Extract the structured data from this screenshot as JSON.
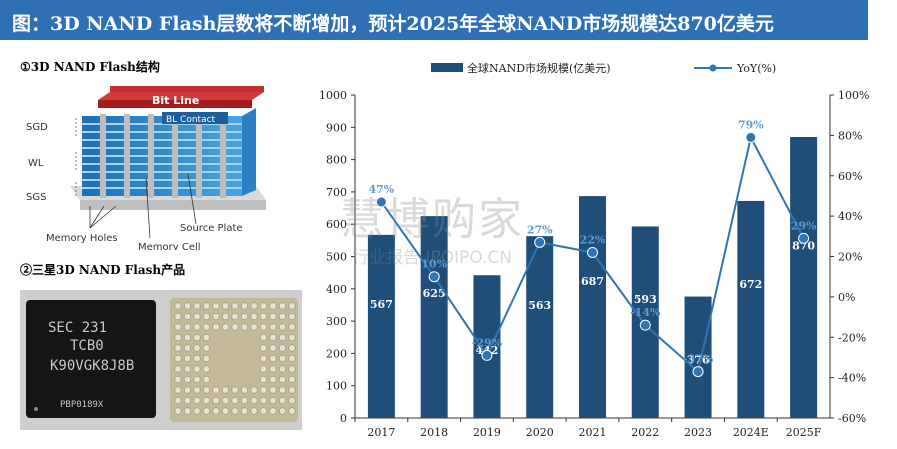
{
  "title": "图：3D NAND Flash层数将不断增加，预计2025年全球NAND市场规模达870亿美元",
  "section1_title": "①3D NAND Flash结构",
  "section2_title": "②三星3D NAND Flash产品",
  "diagram_labels": {
    "bit_line": "Bit Line",
    "bl_contact": "BL Contact",
    "sgd": "SGD",
    "wl": "WL",
    "sgs": "SGS",
    "memory_holes": "Memory Holes",
    "source_plate": "Source Plate",
    "memory_cell": "Memory Cell"
  },
  "chip_text": [
    "SEC 231",
    "TCB0",
    "K90VGK8J8B",
    "PBP0189X"
  ],
  "watermark": {
    "main": "慧博购家",
    "sub": "行业报告 IPOIPO.CN"
  },
  "colors": {
    "bar": "#1f4e79",
    "line": "#2e75b6",
    "title_bg": "#2f6fb3",
    "line_label": "#5b9bd5"
  },
  "chart_data": {
    "type": "bar+line",
    "categories": [
      "2017",
      "2018",
      "2019",
      "2020",
      "2021",
      "2022",
      "2023",
      "2024E",
      "2025F"
    ],
    "series": [
      {
        "name": "全球NAND市场规模(亿美元)",
        "type": "bar",
        "axis": "left",
        "values": [
          567,
          625,
          442,
          563,
          687,
          593,
          376,
          672,
          870
        ],
        "labels": [
          "567",
          "625",
          "442",
          "563",
          "687",
          "593",
          "376",
          "672",
          "870"
        ]
      },
      {
        "name": "YoY(%)",
        "type": "line",
        "axis": "right",
        "values": [
          47,
          10,
          -29,
          27,
          22,
          -14,
          -37,
          79,
          29
        ],
        "labels": [
          "47%",
          "10%",
          "-29%",
          "27%",
          "22%",
          "-14%",
          "-37%",
          "79%",
          "29%"
        ]
      }
    ],
    "y_left": {
      "min": 0,
      "max": 1000,
      "ticks": [
        "0",
        "100",
        "200",
        "300",
        "400",
        "500",
        "600",
        "700",
        "800",
        "900",
        "1000"
      ]
    },
    "y_right": {
      "min": -60,
      "max": 100,
      "ticks": [
        "-60%",
        "-40%",
        "-20%",
        "0%",
        "20%",
        "40%",
        "60%",
        "80%",
        "100%"
      ]
    },
    "legend_position": "top"
  }
}
